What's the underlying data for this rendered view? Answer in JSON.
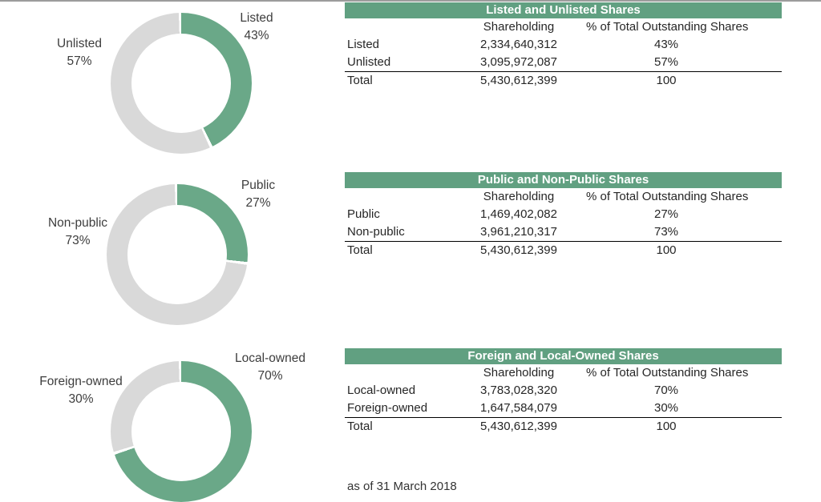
{
  "footnote": "as of 31 March 2018",
  "colors": {
    "chart_green": "#6aa888",
    "chart_gray": "#d9d9d9",
    "header_green": "#61a081",
    "header_text": "#ffffff",
    "top_line": "#9c9c9c"
  },
  "chart_data": [
    {
      "type": "pie",
      "subtype": "donut",
      "title": "Listed and Unlisted Shares",
      "slices": [
        {
          "label": "Listed",
          "pct": 43,
          "value": 2334640312,
          "color": "#6aa888"
        },
        {
          "label": "Unlisted",
          "pct": 57,
          "value": 3095972087,
          "color": "#d9d9d9"
        }
      ],
      "callouts": {
        "primary": {
          "name": "Listed",
          "pct": "43%"
        },
        "secondary": {
          "name": "Unlisted",
          "pct": "57%"
        }
      }
    },
    {
      "type": "pie",
      "subtype": "donut",
      "title": "Public and Non-Public Shares",
      "slices": [
        {
          "label": "Public",
          "pct": 27,
          "value": 1469402082,
          "color": "#6aa888"
        },
        {
          "label": "Non-public",
          "pct": 73,
          "value": 3961210317,
          "color": "#d9d9d9"
        }
      ],
      "callouts": {
        "primary": {
          "name": "Public",
          "pct": "27%"
        },
        "secondary": {
          "name": "Non-public",
          "pct": "73%"
        }
      }
    },
    {
      "type": "pie",
      "subtype": "donut",
      "title": "Foreign and Local-Owned Shares",
      "slices": [
        {
          "label": "Local-owned",
          "pct": 70,
          "value": 3783028320,
          "color": "#6aa888"
        },
        {
          "label": "Foreign-owned",
          "pct": 30,
          "value": 1647584079,
          "color": "#d9d9d9"
        }
      ],
      "callouts": {
        "primary": {
          "name": "Local-owned",
          "pct": "70%"
        },
        "secondary": {
          "name": "Foreign-owned",
          "pct": "30%"
        }
      }
    }
  ],
  "tables": [
    {
      "title": "Listed and Unlisted Shares",
      "columns": [
        "",
        "Shareholding",
        "% of Total Outstanding Shares"
      ],
      "rows": [
        [
          "Listed",
          "2,334,640,312",
          "43%"
        ],
        [
          "Unlisted",
          "3,095,972,087",
          "57%"
        ]
      ],
      "total_row": [
        "Total",
        "5,430,612,399",
        "100"
      ]
    },
    {
      "title": "Public and Non-Public Shares",
      "columns": [
        "",
        "Shareholding",
        "% of Total Outstanding Shares"
      ],
      "rows": [
        [
          "Public",
          "1,469,402,082",
          "27%"
        ],
        [
          "Non-public",
          "3,961,210,317",
          "73%"
        ]
      ],
      "total_row": [
        "Total",
        "5,430,612,399",
        "100"
      ]
    },
    {
      "title": "Foreign and Local-Owned Shares",
      "columns": [
        "",
        "Shareholding",
        "% of Total Outstanding Shares"
      ],
      "rows": [
        [
          "Local-owned",
          "3,783,028,320",
          "70%"
        ],
        [
          "Foreign-owned",
          "1,647,584,079",
          "30%"
        ]
      ],
      "total_row": [
        "Total",
        "5,430,612,399",
        "100"
      ]
    }
  ]
}
